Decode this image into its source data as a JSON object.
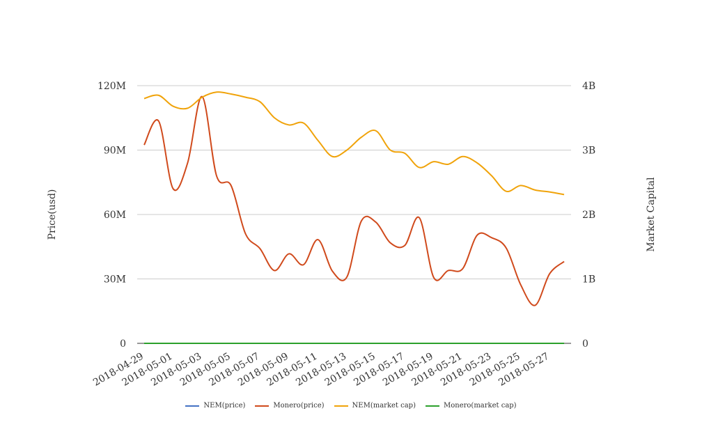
{
  "chart_data": {
    "type": "line",
    "ylabel_left": "Price(usd)",
    "ylabel_right": "Market Capital",
    "left_axis": {
      "ylim": [
        0,
        120000000
      ],
      "ticks": [
        "0",
        "30M",
        "60M",
        "90M",
        "120M"
      ]
    },
    "right_axis": {
      "ylim": [
        0,
        4000000000
      ],
      "ticks": [
        "0",
        "1B",
        "2B",
        "3B",
        "4B"
      ]
    },
    "grid": true,
    "legend_position": "bottom",
    "x": [
      "2018-04-29",
      "2018-04-30",
      "2018-05-01",
      "2018-05-02",
      "2018-05-03",
      "2018-05-04",
      "2018-05-05",
      "2018-05-06",
      "2018-05-07",
      "2018-05-08",
      "2018-05-09",
      "2018-05-10",
      "2018-05-11",
      "2018-05-12",
      "2018-05-13",
      "2018-05-14",
      "2018-05-15",
      "2018-05-16",
      "2018-05-17",
      "2018-05-18",
      "2018-05-19",
      "2018-05-20",
      "2018-05-21",
      "2018-05-22",
      "2018-05-23",
      "2018-05-24",
      "2018-05-25",
      "2018-05-26",
      "2018-05-27",
      "2018-05-28"
    ],
    "x_tick_labels": [
      "2018-04-29",
      "2018-05-01",
      "2018-05-03",
      "2018-05-05",
      "2018-05-07",
      "2018-05-09",
      "2018-05-11",
      "2018-05-13",
      "2018-05-15",
      "2018-05-17",
      "2018-05-19",
      "2018-05-21",
      "2018-05-23",
      "2018-05-25",
      "2018-05-27"
    ],
    "series": [
      {
        "name": "NEM(price)",
        "axis": "left",
        "color": "#4472c4",
        "values": [
          0.31,
          0.34,
          0.3,
          0.29,
          0.37,
          0.36,
          0.35,
          0.33,
          0.31,
          0.29,
          0.27,
          0.28,
          0.26,
          0.24,
          0.25,
          0.27,
          0.28,
          0.25,
          0.24,
          0.22,
          0.23,
          0.22,
          0.24,
          0.23,
          0.21,
          0.19,
          0.2,
          0.19,
          0.19,
          0.19
        ]
      },
      {
        "name": "Monero(price)",
        "axis": "right",
        "color": "#d04a1c",
        "values": [
          3080000000,
          3450000000,
          2400000000,
          2800000000,
          3830000000,
          2600000000,
          2450000000,
          1700000000,
          1470000000,
          1130000000,
          1390000000,
          1220000000,
          1610000000,
          1120000000,
          1030000000,
          1900000000,
          1880000000,
          1560000000,
          1520000000,
          1950000000,
          1020000000,
          1130000000,
          1160000000,
          1680000000,
          1640000000,
          1480000000,
          910000000,
          590000000,
          1080000000,
          1270000000
        ]
      },
      {
        "name": "NEM(market cap)",
        "axis": "right",
        "color": "#f0a30a",
        "values": [
          3800000000,
          3850000000,
          3680000000,
          3650000000,
          3820000000,
          3900000000,
          3870000000,
          3820000000,
          3750000000,
          3500000000,
          3390000000,
          3420000000,
          3150000000,
          2900000000,
          3000000000,
          3200000000,
          3300000000,
          3000000000,
          2950000000,
          2730000000,
          2820000000,
          2780000000,
          2900000000,
          2800000000,
          2600000000,
          2360000000,
          2450000000,
          2380000000,
          2350000000,
          2310000000
        ]
      },
      {
        "name": "Monero(market cap)",
        "axis": "left",
        "color": "#2ca02c",
        "values": [
          140,
          180,
          130,
          120,
          210,
          160,
          150,
          140,
          130,
          120,
          115,
          118,
          110,
          100,
          102,
          110,
          115,
          105,
          102,
          95,
          98,
          96,
          100,
          98,
          92,
          85,
          88,
          85,
          84,
          83
        ]
      }
    ]
  }
}
